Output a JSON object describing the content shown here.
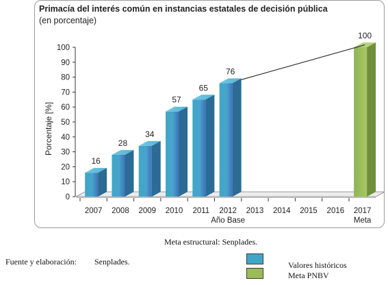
{
  "chart_data": {
    "type": "bar",
    "title": "Primacía del interés común en instancias estatales de decisión pública",
    "subtitle": "(en porcentaje)",
    "ylabel": "Porcentaje [%]",
    "xlabel": "",
    "ylim": [
      0,
      100
    ],
    "yticks": [
      0,
      10,
      20,
      30,
      40,
      50,
      60,
      70,
      80,
      90,
      100
    ],
    "categories": [
      "2007",
      "2008",
      "2009",
      "2010",
      "2011",
      "2012",
      "2013",
      "2014",
      "2015",
      "2016",
      "2017"
    ],
    "category_sublabels": {
      "2012": "Año Base",
      "2017": "Meta"
    },
    "series": [
      {
        "name": "Valores históricos",
        "color": "#3ea7c8",
        "values": [
          16,
          28,
          34,
          57,
          65,
          76,
          null,
          null,
          null,
          null,
          null
        ]
      },
      {
        "name": "Meta PNBV",
        "color": "#9bbb59",
        "values": [
          null,
          null,
          null,
          null,
          null,
          null,
          null,
          null,
          null,
          null,
          100
        ]
      }
    ],
    "trend_line": {
      "from": [
        "2012",
        76
      ],
      "to": [
        "2017",
        100
      ]
    },
    "legend_position": "bottom-right",
    "grid": false
  },
  "caption": "Meta estructural: Senplades.",
  "source": {
    "label": "Fuente y elaboración:",
    "value": "Senplades."
  },
  "legend": [
    {
      "label": "Valores históricos",
      "color": "#3ea7c8"
    },
    {
      "label": "Meta PNBV",
      "color": "#9bbb59"
    }
  ]
}
